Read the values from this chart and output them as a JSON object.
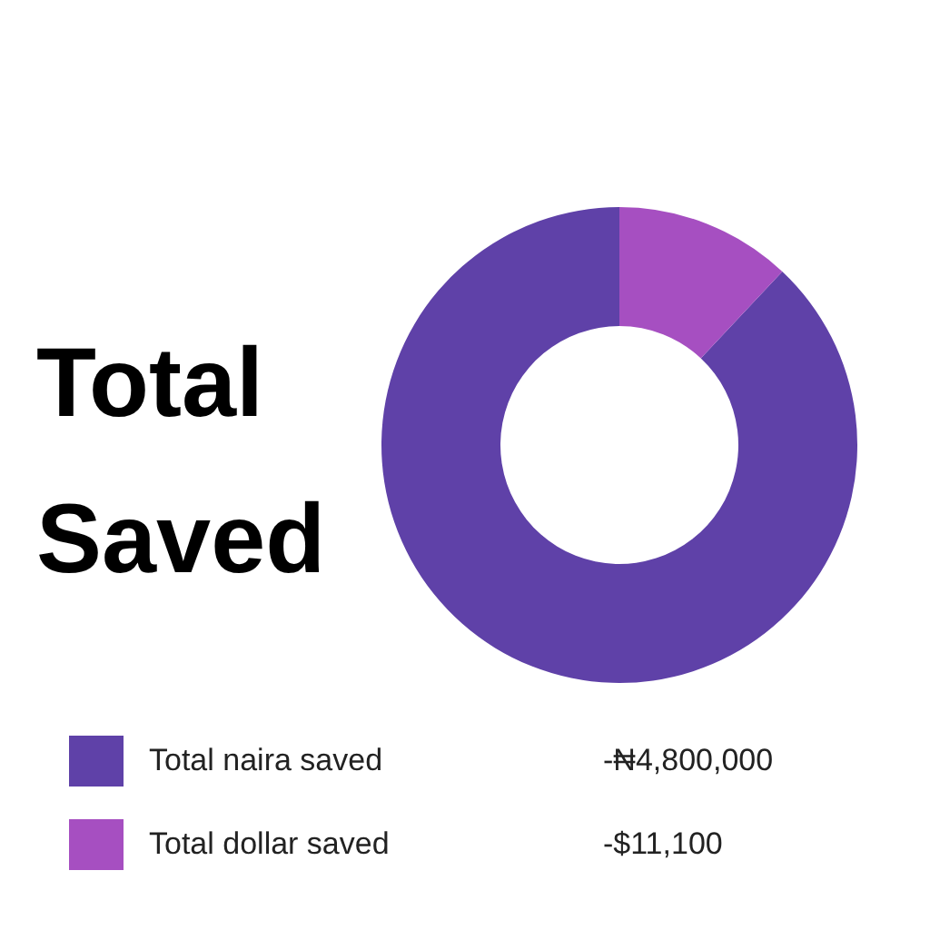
{
  "chart_data": {
    "type": "donut",
    "title": "Total Saved",
    "categories": [
      "Total naira saved",
      "Total dollar saved"
    ],
    "values": [
      88,
      12
    ],
    "colors": [
      "#5f41a8",
      "#a64fc1"
    ],
    "annotations": [
      "-₦4,800,000",
      "-$11,100"
    ],
    "legend": "bottom"
  }
}
